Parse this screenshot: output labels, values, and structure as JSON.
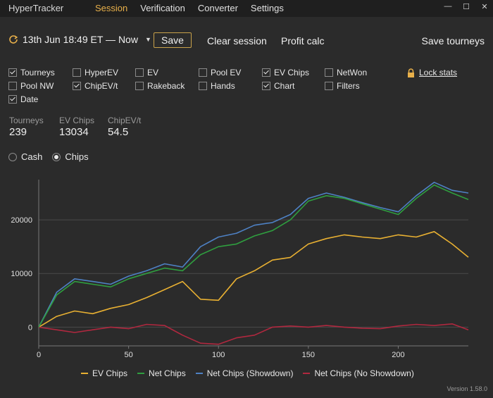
{
  "app": {
    "title": "HyperTracker",
    "version": "Version 1.58.0"
  },
  "menu": [
    {
      "label": "Session",
      "active": true
    },
    {
      "label": "Verification",
      "active": false
    },
    {
      "label": "Converter",
      "active": false
    },
    {
      "label": "Settings",
      "active": false
    }
  ],
  "window_controls": {
    "minimize": "—",
    "maximize": "☐",
    "close": "✕"
  },
  "toolbar": {
    "date_range": "13th Jun 18:49 ET — Now",
    "save_label": "Save",
    "clear_label": "Clear session",
    "profit_label": "Profit calc",
    "save_tourneys_label": "Save tourneys"
  },
  "filters": [
    {
      "label": "Tourneys",
      "checked": true
    },
    {
      "label": "HyperEV",
      "checked": false
    },
    {
      "label": "EV",
      "checked": false
    },
    {
      "label": "Pool EV",
      "checked": false
    },
    {
      "label": "EV Chips",
      "checked": true
    },
    {
      "label": "NetWon",
      "checked": false
    },
    {
      "label": "Pool NW",
      "checked": false
    },
    {
      "label": "ChipEV/t",
      "checked": true
    },
    {
      "label": "Rakeback",
      "checked": false
    },
    {
      "label": "Hands",
      "checked": false
    },
    {
      "label": "Chart",
      "checked": true
    },
    {
      "label": "Filters",
      "checked": false
    },
    {
      "label": "Date",
      "checked": true
    }
  ],
  "lock_label": "Lock stats",
  "stats": [
    {
      "label": "Tourneys",
      "value": "239"
    },
    {
      "label": "EV Chips",
      "value": "13034"
    },
    {
      "label": "ChipEV/t",
      "value": "54.5"
    }
  ],
  "mode": {
    "options": [
      "Cash",
      "Chips"
    ],
    "selected": "Chips"
  },
  "colors": {
    "ev_chips": "#e8b032",
    "net_chips": "#2f9e3f",
    "net_showdown": "#4e81c4",
    "net_no_showdown": "#b0283f",
    "accent": "#e8b04a"
  },
  "chart_data": {
    "type": "line",
    "xlim": [
      0,
      239
    ],
    "ylim": [
      -3500,
      27500
    ],
    "x_ticks": [
      0,
      50,
      100,
      150,
      200
    ],
    "y_ticks": [
      0,
      10000,
      20000
    ],
    "grid": true,
    "legend": "bottom",
    "x": [
      0,
      10,
      20,
      30,
      40,
      50,
      60,
      70,
      80,
      90,
      100,
      110,
      120,
      130,
      140,
      150,
      160,
      170,
      180,
      190,
      200,
      210,
      220,
      230,
      239
    ],
    "series": [
      {
        "name": "EV Chips",
        "color": "#e8b032",
        "values": [
          0,
          2000,
          3000,
          2500,
          3500,
          4200,
          5500,
          7000,
          8500,
          5200,
          5000,
          9000,
          10500,
          12500,
          13000,
          15500,
          16500,
          17200,
          16800,
          16500,
          17200,
          16800,
          17800,
          15500,
          13034
        ]
      },
      {
        "name": "Net Chips",
        "color": "#2f9e3f",
        "values": [
          0,
          6000,
          8500,
          8000,
          7500,
          9000,
          10000,
          11000,
          10500,
          13500,
          15000,
          15500,
          17000,
          18000,
          20000,
          23500,
          24500,
          24000,
          23000,
          22000,
          21000,
          24000,
          26500,
          25000,
          23800
        ]
      },
      {
        "name": "Net Chips (Showdown)",
        "color": "#4e81c4",
        "values": [
          0,
          6500,
          9000,
          8500,
          8000,
          9500,
          10500,
          11800,
          11200,
          15000,
          16800,
          17500,
          19000,
          19500,
          21000,
          24000,
          25000,
          24200,
          23200,
          22300,
          21500,
          24500,
          27000,
          25500,
          25000
        ]
      },
      {
        "name": "Net Chips (No Showdown)",
        "color": "#b0283f",
        "values": [
          0,
          -500,
          -1000,
          -500,
          0,
          -300,
          500,
          300,
          -1500,
          -3000,
          -3200,
          -2000,
          -1500,
          0,
          200,
          0,
          300,
          0,
          -200,
          -300,
          200,
          500,
          300,
          600,
          -500
        ]
      }
    ]
  }
}
